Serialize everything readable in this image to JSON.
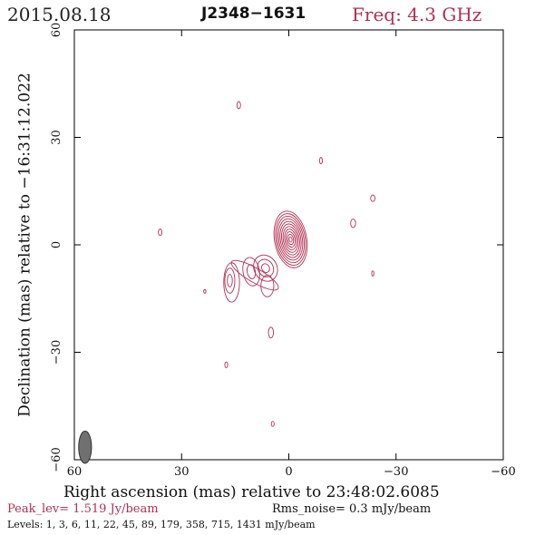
{
  "header": {
    "date": "2015.08.18",
    "source": "J2348−1631",
    "freq": "Freq: 4.3 GHz"
  },
  "footer": {
    "peak": "Peak_lev=  1.519 Jy/beam",
    "rms": "Rms_noise=  0.3 mJy/beam",
    "levels": "Levels:  1,  3,  6,  11,  22,  45,  89, 179, 358, 715, 1431 mJy/beam"
  },
  "chart_data": {
    "type": "contour",
    "xlabel": "Right ascension (mas) relative to 23:48:02.6085",
    "ylabel": "Declination (mas) relative to −16:31:12.022",
    "xlim": [
      60,
      -60
    ],
    "ylim": [
      -60,
      60
    ],
    "x_ticks": [
      60,
      30,
      0,
      -30,
      -60
    ],
    "y_ticks": [
      60,
      30,
      0,
      -30,
      -60
    ],
    "x_tick_labels": [
      "60",
      "30",
      "0",
      "−30",
      "−60"
    ],
    "y_tick_labels": [
      "60",
      "30",
      "0",
      "−30",
      "−60"
    ],
    "contour_levels_mJy": [
      1,
      3,
      6,
      11,
      22,
      45,
      89,
      179,
      358,
      715,
      1431
    ],
    "peak_Jy_per_beam": 1.519,
    "rms_noise_mJy_per_beam": 0.3,
    "contour_color": "#b03050",
    "beam": {
      "x": 57,
      "y": -56.5,
      "major_mas": 4.5,
      "minor_mas": 1.8,
      "pa_deg": 0,
      "fill": "#707070"
    },
    "components": [
      {
        "name": "core",
        "x": -0.5,
        "y": 1.5,
        "a": 4.5,
        "b": 8.0,
        "rot": -10,
        "levels": 11
      },
      {
        "name": "jet-knot-1",
        "x": 6.5,
        "y": -6.5,
        "a": 3.2,
        "b": 3.8,
        "rot": -30,
        "levels": 3
      },
      {
        "name": "jet-knot-2",
        "x": 10.5,
        "y": -7.5,
        "a": 2.3,
        "b": 4.0,
        "rot": -10,
        "levels": 2
      },
      {
        "name": "jet-knot-3",
        "x": 16.0,
        "y": -10.5,
        "a": 2.2,
        "b": 5.5,
        "rot": 0,
        "levels": 1
      },
      {
        "name": "jet-knot-4",
        "x": 16.5,
        "y": -10.0,
        "a": 1.4,
        "b": 3.5,
        "rot": 0,
        "levels": 2
      },
      {
        "name": "jet-bridge",
        "x": 9.5,
        "y": -8.5,
        "a": 2.0,
        "b": 7.5,
        "rot": -60,
        "levels": 1
      },
      {
        "name": "lobe-west",
        "x": 6.0,
        "y": -11.5,
        "a": 1.8,
        "b": 3.0,
        "rot": 0,
        "levels": 1
      },
      {
        "name": "spot-1",
        "x": 14.0,
        "y": 39.0,
        "a": 0.5,
        "b": 1.0,
        "rot": 0,
        "levels": 1
      },
      {
        "name": "spot-2",
        "x": -9.0,
        "y": 23.5,
        "a": 0.4,
        "b": 0.9,
        "rot": 0,
        "levels": 1
      },
      {
        "name": "spot-3",
        "x": -23.5,
        "y": 13.0,
        "a": 0.6,
        "b": 0.9,
        "rot": 0,
        "levels": 1
      },
      {
        "name": "spot-4",
        "x": -18.0,
        "y": 6.0,
        "a": 0.7,
        "b": 1.2,
        "rot": 0,
        "levels": 1
      },
      {
        "name": "spot-5",
        "x": 36.0,
        "y": 3.5,
        "a": 0.5,
        "b": 0.9,
        "rot": 0,
        "levels": 1
      },
      {
        "name": "spot-6",
        "x": -23.5,
        "y": -8.0,
        "a": 0.3,
        "b": 0.7,
        "rot": 0,
        "levels": 1
      },
      {
        "name": "spot-7",
        "x": 23.5,
        "y": -13.0,
        "a": 0.3,
        "b": 0.5,
        "rot": 0,
        "levels": 1
      },
      {
        "name": "spot-8",
        "x": 5.0,
        "y": -24.5,
        "a": 0.7,
        "b": 1.5,
        "rot": 0,
        "levels": 1
      },
      {
        "name": "spot-9",
        "x": 17.5,
        "y": -33.5,
        "a": 0.4,
        "b": 0.8,
        "rot": 0,
        "levels": 1
      },
      {
        "name": "spot-10",
        "x": 4.5,
        "y": -50.0,
        "a": 0.4,
        "b": 0.7,
        "rot": 0,
        "levels": 1
      }
    ]
  }
}
